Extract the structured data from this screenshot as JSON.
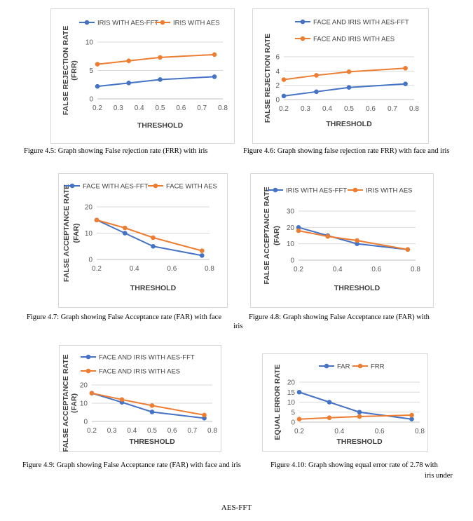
{
  "colors": {
    "series1": "#4472c4",
    "series2": "#ed7d31",
    "grid": "#d9d9d9",
    "axis": "#bfbfbf"
  },
  "chart_data": [
    {
      "type": "line",
      "ylabel": "FALSE REJECTION RATE (FRR)",
      "xlabel": "THRESHOLD",
      "xlim": [
        0.2,
        0.8
      ],
      "xticks": [
        "0.2",
        "0.3",
        "0.4",
        "0.5",
        "0.6",
        "0.7",
        "0.8"
      ],
      "ylim": [
        0,
        10
      ],
      "yticks": [
        "0",
        "5",
        "10"
      ],
      "grid": true,
      "legend": "top",
      "series": [
        {
          "name": "IRIS WITH AES-FFT",
          "x": [
            0.2,
            0.35,
            0.5,
            0.76
          ],
          "values": [
            2.2,
            2.8,
            3.4,
            3.9
          ]
        },
        {
          "name": "IRIS WITH AES",
          "x": [
            0.2,
            0.35,
            0.5,
            0.76
          ],
          "values": [
            6.1,
            6.7,
            7.3,
            7.8
          ]
        }
      ],
      "caption": "Figure 4.5: Graph showing False rejection rate (FRR) with iris"
    },
    {
      "type": "line",
      "ylabel": "FALSE REJECTION RATE",
      "xlabel": "THRESHOLD",
      "xlim": [
        0.2,
        0.8
      ],
      "xticks": [
        "0.2",
        "0.3",
        "0.4",
        "0.5",
        "0.6",
        "0.7",
        "0.8"
      ],
      "ylim": [
        0,
        6
      ],
      "yticks": [
        "0",
        "2",
        "4",
        "6"
      ],
      "grid": true,
      "legend": "top-left",
      "series": [
        {
          "name": "FACE AND IRIS WITH AES-FFT",
          "x": [
            0.2,
            0.35,
            0.5,
            0.76
          ],
          "values": [
            0.5,
            1.1,
            1.7,
            2.2
          ]
        },
        {
          "name": "FACE AND IRIS WITH AES",
          "x": [
            0.2,
            0.35,
            0.5,
            0.76
          ],
          "values": [
            2.8,
            3.4,
            3.9,
            4.4
          ]
        }
      ],
      "caption": "Figure 4.6: Graph showing false rejection rate FRR) with face and iris"
    },
    {
      "type": "line",
      "ylabel": "FALSE ACCEPTANCE RATE (FAR)",
      "xlabel": "THRESHOLD",
      "xlim": [
        0.2,
        0.8
      ],
      "xticks": [
        "0.2",
        "0.4",
        "0.6",
        "0.8"
      ],
      "ylim": [
        0,
        20
      ],
      "yticks": [
        "0",
        "10",
        "20"
      ],
      "grid": true,
      "legend": "top",
      "series": [
        {
          "name": "FACE WITH AES-FFT",
          "x": [
            0.2,
            0.35,
            0.5,
            0.76
          ],
          "values": [
            15,
            10,
            5,
            1.5
          ]
        },
        {
          "name": "FACE WITH AES",
          "x": [
            0.2,
            0.35,
            0.5,
            0.76
          ],
          "values": [
            15,
            12,
            8.3,
            3.3
          ]
        }
      ],
      "caption": "Figure 4.7: Graph showing False Acceptance rate (FAR) with face"
    },
    {
      "type": "line",
      "ylabel": "FALSE ACCEPTANCE RATE (FAR)",
      "xlabel": "THRESHOLD",
      "xlim": [
        0.2,
        0.8
      ],
      "xticks": [
        "0.2",
        "0.4",
        "0.6",
        "0.8"
      ],
      "ylim": [
        0,
        30
      ],
      "yticks": [
        "0",
        "10",
        "20",
        "30"
      ],
      "grid": true,
      "legend": "top",
      "series": [
        {
          "name": "IRIS WITH AES-FFT",
          "x": [
            0.2,
            0.35,
            0.5,
            0.76
          ],
          "values": [
            20,
            15,
            10,
            6.5
          ]
        },
        {
          "name": "IRIS WITH AES",
          "x": [
            0.2,
            0.35,
            0.5,
            0.76
          ],
          "values": [
            18,
            14.5,
            12,
            6.5
          ]
        }
      ],
      "caption": "Figure 4.8: Graph showing False Acceptance rate (FAR) with"
    },
    {
      "type": "line",
      "ylabel": "FALSE ACCEPTANCE RATE (FAR)",
      "xlabel": "THRESHOLD",
      "xlim": [
        0.2,
        0.8
      ],
      "xticks": [
        "0.2",
        "0.3",
        "0.4",
        "0.5",
        "0.6",
        "0.7",
        "0.8"
      ],
      "ylim": [
        0,
        20
      ],
      "yticks": [
        "0",
        "10",
        "20"
      ],
      "grid": true,
      "legend": "top-left",
      "series": [
        {
          "name": "FACE AND IRIS WITH AES-FFT",
          "x": [
            0.2,
            0.35,
            0.5,
            0.76
          ],
          "values": [
            15.5,
            10.5,
            5.2,
            1.8
          ]
        },
        {
          "name": "FACE AND IRIS WITH AES",
          "x": [
            0.2,
            0.35,
            0.5,
            0.76
          ],
          "values": [
            15.5,
            12,
            8.7,
            3.5
          ]
        }
      ],
      "caption": "Figure 4.9: Graph showing False Acceptance rate (FAR) with face and iris"
    },
    {
      "type": "line",
      "ylabel": "EQUAL ERROR RATE",
      "xlabel": "THRESHOLD",
      "xlim": [
        0.2,
        0.8
      ],
      "xticks": [
        "0.2",
        "0.4",
        "0.6",
        "0.8"
      ],
      "ylim": [
        0,
        20
      ],
      "yticks": [
        "0",
        "5",
        "10",
        "15",
        "20"
      ],
      "grid": true,
      "legend": "top",
      "series": [
        {
          "name": "FAR",
          "x": [
            0.2,
            0.35,
            0.5,
            0.76
          ],
          "values": [
            15,
            10,
            5,
            1.5
          ]
        },
        {
          "name": "FRR",
          "x": [
            0.2,
            0.35,
            0.5,
            0.76
          ],
          "values": [
            1.5,
            2.2,
            2.8,
            3.5
          ]
        }
      ],
      "caption": "Figure 4.10: Graph showing equal error rate of 2.78 with"
    }
  ],
  "extra_caption": {
    "figure_4_7_continuation": "iris",
    "figure_4_10_continuation": "iris under"
  },
  "footer": "AES-FFT"
}
